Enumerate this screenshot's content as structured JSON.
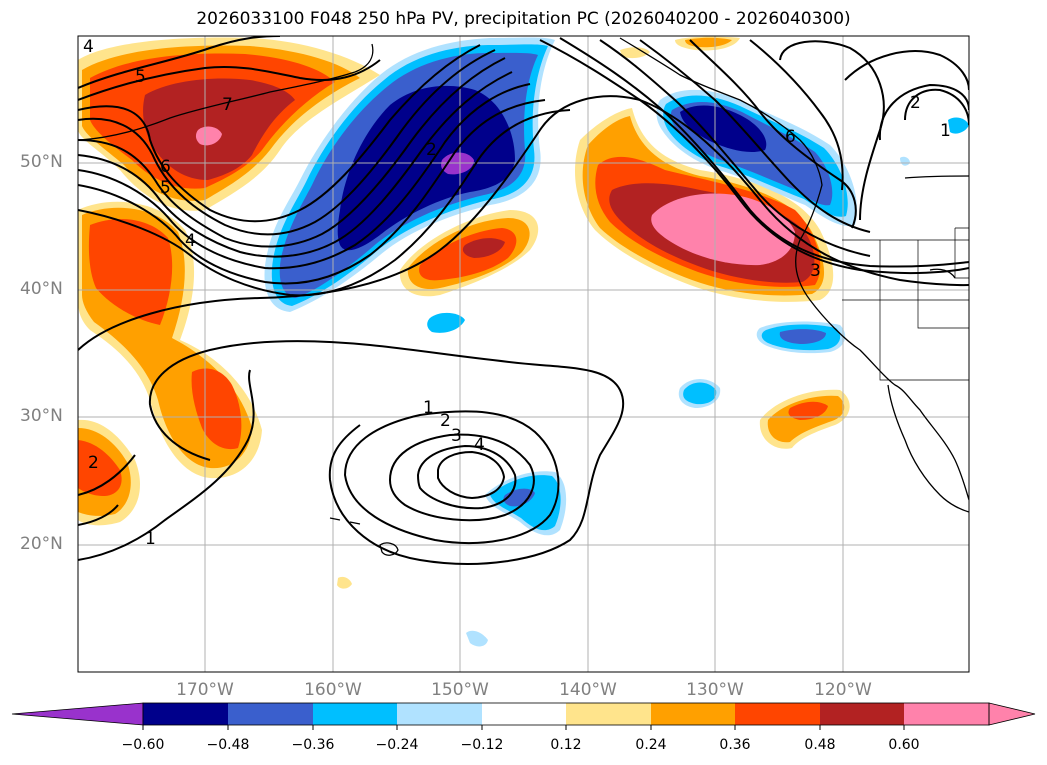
{
  "title": "2026033100 F048 250 hPa PV, precipitation PC (2026040200 - 2026040300)",
  "lat_labels": [
    {
      "text": "50°N"
    },
    {
      "text": "40°N"
    },
    {
      "text": "30°N"
    },
    {
      "text": "20°N"
    }
  ],
  "lon_labels": [
    {
      "text": "170°W"
    },
    {
      "text": "160°W"
    },
    {
      "text": "150°W"
    },
    {
      "text": "140°W"
    },
    {
      "text": "130°W"
    },
    {
      "text": "120°W"
    }
  ],
  "contour_labels": [
    {
      "text": "4"
    },
    {
      "text": "5"
    },
    {
      "text": "7"
    },
    {
      "text": "6"
    },
    {
      "text": "5"
    },
    {
      "text": "4"
    },
    {
      "text": "2"
    },
    {
      "text": "1"
    },
    {
      "text": "2"
    },
    {
      "text": "3"
    },
    {
      "text": "4"
    },
    {
      "text": "1"
    },
    {
      "text": "2"
    },
    {
      "text": "6"
    },
    {
      "text": "3"
    },
    {
      "text": "2"
    },
    {
      "text": "1"
    }
  ],
  "colorbar": {
    "labels": [
      "−0.60",
      "−0.48",
      "−0.36",
      "−0.24",
      "−0.12",
      "0.12",
      "0.24",
      "0.36",
      "0.48",
      "0.60"
    ],
    "colors": [
      "#9932cc",
      "#00008b",
      "#3a5fcd",
      "#00bfff",
      "#b0e2ff",
      "#ffffff",
      "#ffe48c",
      "#ffa000",
      "#ff4500",
      "#b22222",
      "#ff82ab"
    ]
  }
}
